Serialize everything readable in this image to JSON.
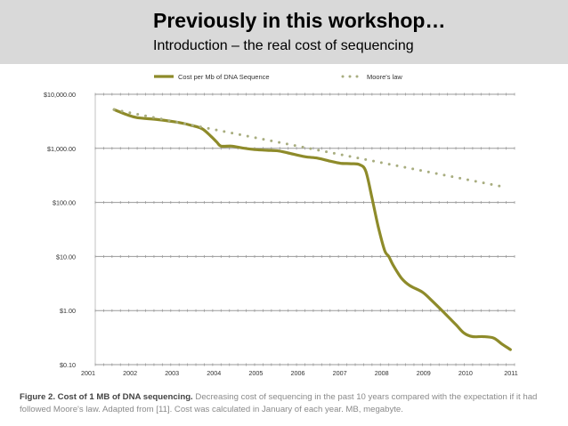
{
  "slide": {
    "title": "Previously in this workshop…",
    "subtitle": "Introduction – the real cost of sequencing"
  },
  "caption": {
    "bold": "Figure 2. Cost of 1 MB of DNA sequencing.",
    "text": "Decreasing cost of sequencing in the past 10 years compared with the expectation if it had followed Moore's law. Adapted from [11]. Cost was calculated in January of each year. MB, megabyte."
  },
  "chart_data": {
    "type": "line",
    "title": "",
    "xlabel": "",
    "ylabel": "",
    "y_scale": "log",
    "xlim": [
      2001,
      2011
    ],
    "ylim": [
      0.1,
      10000
    ],
    "x_ticks": [
      "2001",
      "2002",
      "2003",
      "2004",
      "2005",
      "2006",
      "2007",
      "2008",
      "2009",
      "2010",
      "2011"
    ],
    "y_ticks": [
      {
        "value": 10000,
        "label": "$10,000.00"
      },
      {
        "value": 1000,
        "label": "$1,000.00"
      },
      {
        "value": 100,
        "label": "$100.00"
      },
      {
        "value": 10,
        "label": "$10.00"
      },
      {
        "value": 1,
        "label": "$1.00"
      },
      {
        "value": 0.1,
        "label": "$0.10"
      }
    ],
    "grid": "horizontal",
    "legend_position": "top",
    "series": [
      {
        "name": "Cost per Mb of DNA Sequence",
        "style": "solid",
        "color": "#8e8b2a",
        "x": [
          2001.45,
          2001.75,
          2002.0,
          2002.5,
          2003.0,
          2003.3,
          2003.55,
          2003.75,
          2003.9,
          2004.0,
          2004.25,
          2004.5,
          2004.8,
          2005.1,
          2005.35,
          2005.6,
          2006.0,
          2006.3,
          2006.6,
          2006.85,
          2007.1,
          2007.3,
          2007.45,
          2007.6,
          2007.75,
          2007.9,
          2008.0,
          2008.1,
          2008.3,
          2008.5,
          2008.8,
          2009.0,
          2009.3,
          2009.6,
          2009.8,
          2010.0,
          2010.25,
          2010.5,
          2010.7,
          2010.9
        ],
        "y": [
          5200,
          4200,
          3700,
          3400,
          3000,
          2650,
          2300,
          1700,
          1300,
          1100,
          1100,
          1020,
          950,
          920,
          900,
          820,
          700,
          660,
          580,
          530,
          520,
          500,
          380,
          120,
          35,
          13,
          10,
          7,
          4,
          2.9,
          2.2,
          1.6,
          0.95,
          0.55,
          0.38,
          0.33,
          0.33,
          0.31,
          0.24,
          0.19
        ]
      },
      {
        "name": "Moore's law",
        "style": "dotted",
        "color": "#a8ad7f",
        "x": [
          2001.45,
          2010.8
        ],
        "y": [
          5200,
          190
        ]
      }
    ]
  }
}
